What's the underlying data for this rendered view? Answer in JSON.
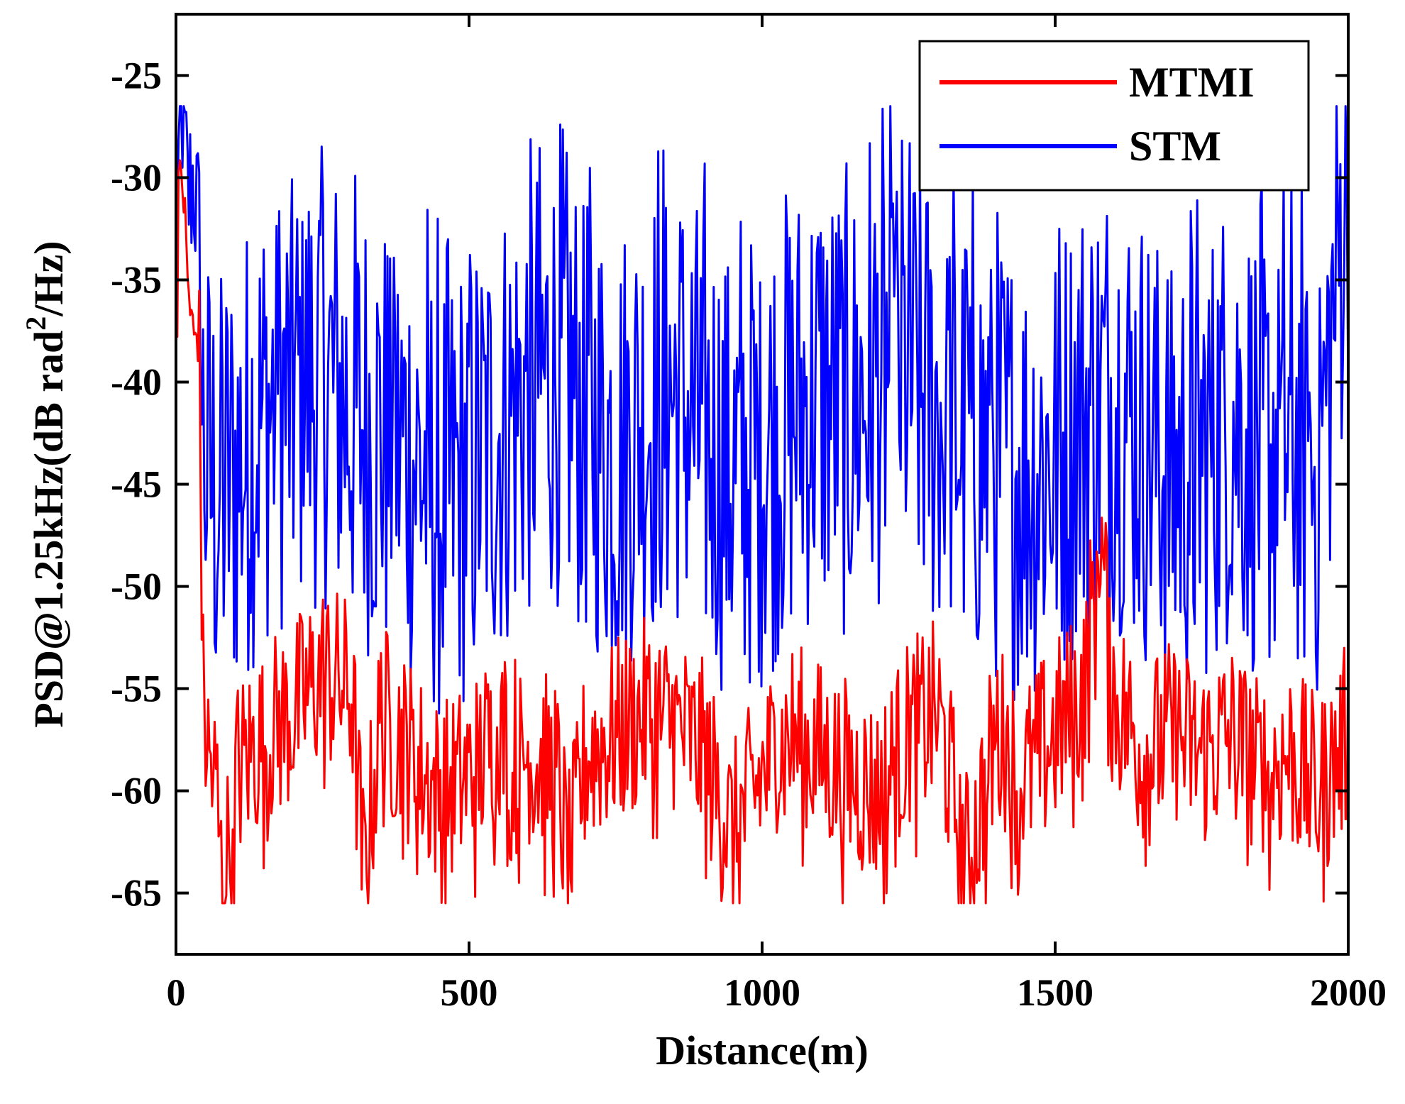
{
  "chart_data": {
    "type": "line",
    "title": "",
    "xlabel": "Distance(m)",
    "ylabel_main": "PSD@1.25kHz(dB rad",
    "ylabel_sup": "2",
    "ylabel_tail": "/Hz)",
    "xlim": [
      0,
      2000
    ],
    "ylim": [
      -68,
      -22
    ],
    "xticks": [
      0,
      500,
      1000,
      1500,
      2000
    ],
    "xtick_labels": [
      "0",
      "500",
      "1000",
      "1500",
      "2000"
    ],
    "yticks": [
      -25,
      -30,
      -35,
      -40,
      -45,
      -50,
      -55,
      -60,
      -65
    ],
    "ytick_labels": [
      "-25",
      "-30",
      "-35",
      "-40",
      "-45",
      "-50",
      "-55",
      "-60",
      "-65"
    ],
    "grid": false,
    "legend_position": "top-right",
    "series": [
      {
        "name": "MTMI",
        "color": "#ff0000",
        "x": [
          0,
          10,
          20,
          30,
          40,
          45,
          55,
          70,
          80,
          100,
          150,
          200,
          250,
          300,
          320,
          350,
          400,
          450,
          500,
          550,
          600,
          650,
          670,
          700,
          750,
          800,
          850,
          900,
          950,
          1000,
          1050,
          1100,
          1150,
          1200,
          1250,
          1300,
          1350,
          1400,
          1450,
          1500,
          1550,
          1575,
          1600,
          1650,
          1700,
          1750,
          1800,
          1850,
          1900,
          1950,
          2000
        ],
        "y": [
          -33,
          -29,
          -35,
          -38,
          -37,
          -55,
          -58,
          -60,
          -65.5,
          -59,
          -57,
          -56,
          -54,
          -55,
          -64,
          -56,
          -58,
          -60,
          -59,
          -57,
          -58,
          -59,
          -63.5,
          -58,
          -57,
          -56,
          -56.5,
          -58,
          -62,
          -59,
          -57,
          -58,
          -59,
          -60,
          -57,
          -56,
          -63.5,
          -57,
          -59,
          -57,
          -55,
          -46.5,
          -55,
          -58,
          -57,
          -58,
          -57,
          -59,
          -58,
          -60,
          -57
        ]
      },
      {
        "name": "STM",
        "color": "#0000ff",
        "x": [
          0,
          10,
          20,
          30,
          40,
          45,
          55,
          70,
          100,
          150,
          200,
          250,
          300,
          350,
          400,
          450,
          500,
          550,
          600,
          650,
          700,
          750,
          800,
          850,
          900,
          950,
          1000,
          1050,
          1100,
          1150,
          1200,
          1250,
          1300,
          1350,
          1400,
          1450,
          1500,
          1550,
          1600,
          1650,
          1700,
          1750,
          1800,
          1850,
          1900,
          1950,
          2000
        ],
        "y": [
          -33,
          -27,
          -32,
          -31,
          -34,
          -45,
          -47,
          -48,
          -47,
          -44,
          -43,
          -42,
          -44,
          -45,
          -46,
          -48,
          -47,
          -45,
          -43,
          -42,
          -44,
          -46,
          -44,
          -43,
          -45,
          -47,
          -46,
          -44,
          -43,
          -44,
          -42,
          -42,
          -44,
          -45,
          -46,
          -47,
          -46,
          -44,
          -43,
          -45,
          -47,
          -46,
          -44,
          -46,
          -45,
          -47,
          -31.5
        ]
      }
    ]
  }
}
